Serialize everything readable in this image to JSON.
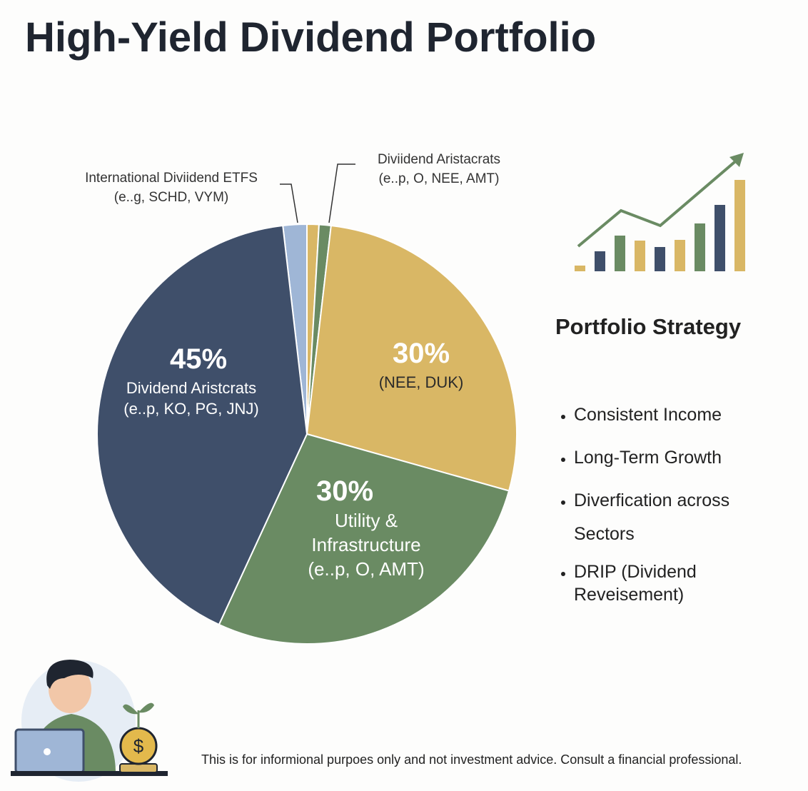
{
  "chart_data": {
    "type": "pie",
    "title": "High-Yield Dividend Portfolio",
    "categories": [
      "International Diviidend ETFS (e..g, SCHD, VYM)",
      null,
      "Diviidend Aristacrats (e..p, O, NEE, AMT)",
      "(NEE, DUK)",
      "Utility & Infrastructure (e..p, O, AMT)",
      "Dividend Aristcrats (e..p, KO, PG, JNJ)"
    ],
    "values": [
      2,
      1,
      1,
      30,
      30,
      45
    ],
    "value_labels": [
      null,
      null,
      null,
      "30%",
      "30%",
      "45%"
    ],
    "colors": [
      "#9fb6d6",
      "#d9b765",
      "#6a8b63",
      "#d9b765",
      "#6a8b63",
      "#3f4f6a"
    ]
  },
  "strategy": {
    "title": "Portfolio Strategy",
    "items": [
      "Consistent Income",
      "Long-Term Growth",
      "Diverfication across Sectors",
      "DRIP (Dividend Reveisement)"
    ]
  },
  "disclaimer": "This is for informional purpoes only and not investment advice. Consult a financial professional."
}
